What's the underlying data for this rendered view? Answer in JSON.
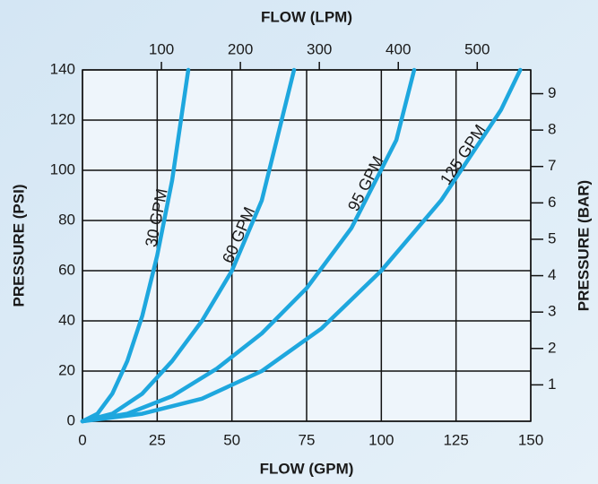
{
  "chart_data": {
    "type": "line",
    "xlabel": "FLOW (GPM)",
    "ylabel": "PRESSURE (PSI)",
    "x2label": "FLOW (LPM)",
    "y2label": "PRESSURE (BAR)",
    "xlim": [
      0,
      150
    ],
    "xticks": [
      0,
      25,
      50,
      75,
      100,
      125,
      150
    ],
    "ylim": [
      0,
      140
    ],
    "yticks": [
      0,
      20,
      40,
      60,
      80,
      100,
      120,
      140
    ],
    "x2lim": [
      0,
      567.8
    ],
    "x2ticks": [
      100,
      200,
      300,
      400,
      500
    ],
    "y2lim": [
      0,
      9.653
    ],
    "y2ticks": [
      1,
      2,
      3,
      4,
      5,
      6,
      7,
      8,
      9
    ],
    "grid": true,
    "series": [
      {
        "name": "30 GPM",
        "color": "#1ea7de",
        "x": [
          0,
          5,
          10,
          15,
          20,
          25,
          30,
          35.4
        ],
        "values": [
          0,
          3,
          11,
          24,
          42,
          66,
          96,
          140
        ]
      },
      {
        "name": "60 GPM",
        "color": "#1ea7de",
        "x": [
          0,
          10,
          20,
          30,
          40,
          50,
          60,
          70.8
        ],
        "values": [
          0,
          3,
          11,
          24,
          40,
          60,
          88,
          140
        ]
      },
      {
        "name": "95 GPM",
        "color": "#1ea7de",
        "x": [
          0,
          15,
          30,
          45,
          60,
          75,
          90,
          105,
          111
        ],
        "values": [
          0,
          3,
          10,
          21,
          35,
          53,
          77,
          112,
          140
        ]
      },
      {
        "name": "125 GPM",
        "color": "#1ea7de",
        "x": [
          0,
          20,
          40,
          60,
          80,
          100,
          120,
          140,
          146.5
        ],
        "values": [
          0,
          3,
          9,
          20,
          37,
          60,
          88,
          124,
          140
        ]
      }
    ]
  }
}
